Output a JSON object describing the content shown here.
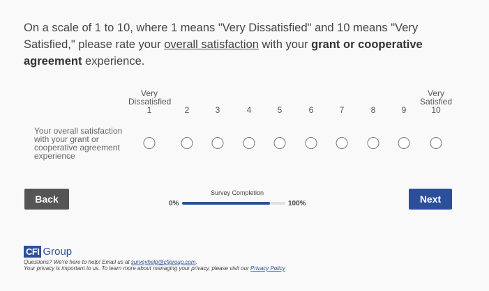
{
  "question": {
    "part1": "On a scale of 1 to 10, where 1 means \"Very Dissatisfied\" and 10 means \"Very Satisfied,\" please rate your ",
    "underlined": "overall satisfaction",
    "part2": " with your ",
    "bold": "grant or cooperative agreement",
    "part3": " experience."
  },
  "scale": {
    "low_anchor_line1": "Very",
    "low_anchor_line2": "Dissatisfied",
    "high_anchor_line1": "Very",
    "high_anchor_line2": "Satisfied",
    "points": [
      "1",
      "2",
      "3",
      "4",
      "5",
      "6",
      "7",
      "8",
      "9",
      "10"
    ]
  },
  "row": {
    "label": "Your overall satisfaction with your grant or cooperative agreement experience"
  },
  "navigation": {
    "back_label": "Back",
    "next_label": "Next"
  },
  "progress": {
    "title": "Survey Completion",
    "start_label": "0%",
    "end_label": "100%",
    "fraction": 0.85,
    "color": "#2c4f9a"
  },
  "footer": {
    "logo_box": "CFI",
    "logo_text": "Group",
    "help_prefix": "Questions? We're here to help! Email us at ",
    "help_email": "surveyhelp@cfigroup.com",
    "help_suffix": ".",
    "privacy_prefix": "Your privacy is important to us. To learn more about managing your privacy, please visit our ",
    "privacy_link": "Privacy Policy"
  }
}
